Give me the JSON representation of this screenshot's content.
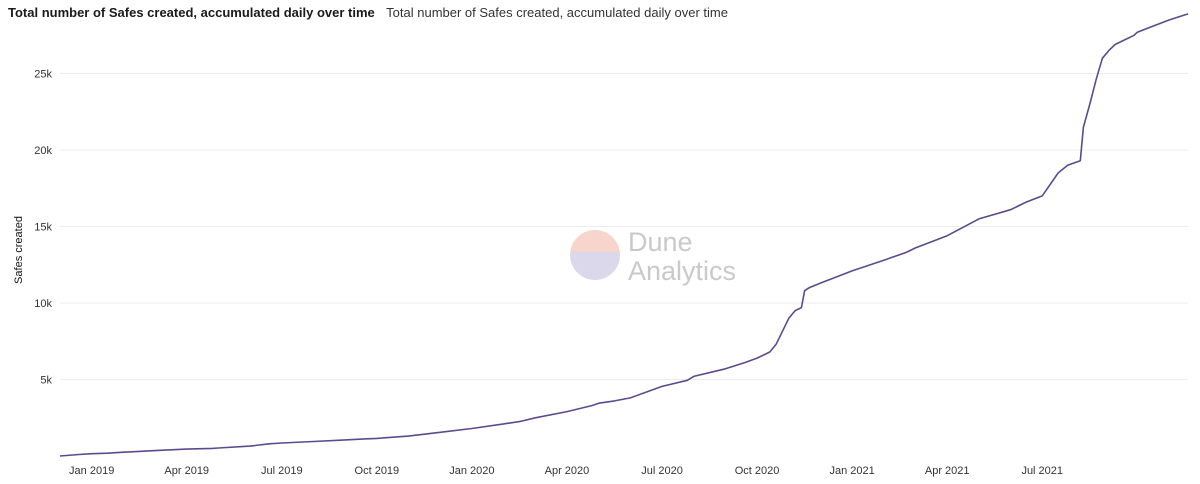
{
  "header": {
    "title": "Total number of Safes created, accumulated daily over time",
    "subtitle": "Total number of Safes created, accumulated daily over time"
  },
  "watermark": {
    "line1": "Dune",
    "line2": "Analytics"
  },
  "chart_data": {
    "type": "line",
    "title": "Total number of Safes created, accumulated daily over time",
    "xlabel": "",
    "ylabel": "Safes created",
    "ylim": [
      0,
      28500
    ],
    "yticks": [
      5000,
      10000,
      15000,
      20000,
      25000
    ],
    "ytick_labels": [
      "5k",
      "10k",
      "15k",
      "20k",
      "25k"
    ],
    "xticks": [
      "Jan 2019",
      "Apr 2019",
      "Jul 2019",
      "Oct 2019",
      "Jan 2020",
      "Apr 2020",
      "Jul 2020",
      "Oct 2020",
      "Jan 2021",
      "Apr 2021",
      "Jul 2021"
    ],
    "x_unit": "months since 2018-12-01",
    "line_color": "#5a4b8f",
    "series": [
      {
        "name": "Safes created",
        "x": [
          0,
          0.6,
          1.0,
          1.5,
          2.0,
          3.0,
          4.0,
          4.8,
          5.0,
          6.0,
          6.6,
          7.0,
          8.0,
          9.0,
          9.6,
          10.0,
          11.0,
          12.0,
          13.0,
          14.0,
          14.5,
          15.0,
          16.0,
          16.8,
          17.0,
          17.5,
          18.0,
          19.0,
          19.8,
          20.0,
          20.8,
          21.0,
          21.6,
          22.0,
          22.4,
          22.6,
          23.0,
          23.2,
          23.4,
          23.5,
          23.6,
          23.7,
          24.0,
          25.0,
          26.0,
          26.7,
          27.0,
          28.0,
          29.0,
          30.0,
          30.5,
          31.0,
          31.5,
          31.8,
          32.2,
          32.3,
          32.5,
          32.7,
          32.9,
          33.1,
          33.3,
          33.5,
          33.9,
          34.0,
          34.5,
          35.0,
          35.6
        ],
        "values": [
          0,
          100,
          150,
          180,
          250,
          350,
          450,
          500,
          520,
          650,
          800,
          850,
          950,
          1050,
          1120,
          1150,
          1300,
          1550,
          1800,
          2100,
          2250,
          2500,
          2900,
          3300,
          3450,
          3600,
          3800,
          4550,
          4950,
          5200,
          5600,
          5700,
          6100,
          6400,
          6800,
          7300,
          9000,
          9500,
          9700,
          10800,
          10950,
          11050,
          11300,
          12100,
          12800,
          13300,
          13600,
          14400,
          15500,
          16100,
          16600,
          17000,
          18500,
          19000,
          19300,
          21500,
          23000,
          24600,
          26000,
          26500,
          26900,
          27100,
          27500,
          27700,
          28100,
          28500,
          28900
        ]
      }
    ]
  }
}
